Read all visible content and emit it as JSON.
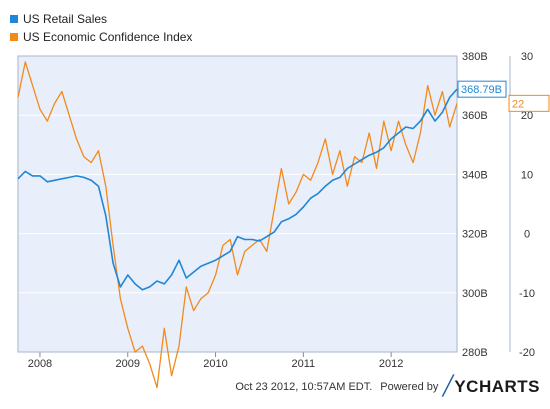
{
  "legend": [
    {
      "name": "US Retail Sales",
      "color": "#1f87d6"
    },
    {
      "name": "US Economic Confidence Index",
      "color": "#f28a1a"
    }
  ],
  "footer": {
    "timestamp": "Oct 23 2012, 10:57AM EDT.",
    "powered_by": "Powered by",
    "brand": "YCHARTS"
  },
  "chart_data": {
    "type": "line",
    "x_ticks": [
      "2008",
      "2009",
      "2010",
      "2011",
      "2012"
    ],
    "left_axis": {
      "ticks": [
        "280B",
        "300B",
        "320B",
        "340B",
        "360B",
        "380B"
      ],
      "range": [
        280,
        380
      ]
    },
    "right_axis": {
      "ticks": [
        "-20",
        "-10",
        "0",
        "10",
        "20",
        "30"
      ],
      "range": [
        -20,
        30
      ]
    },
    "x_range": [
      "2007-10",
      "2012-10"
    ],
    "grid": true,
    "legend_position": "top-left",
    "end_labels": {
      "left": "368.79B",
      "right": "22"
    },
    "series": [
      {
        "name": "US Retail Sales",
        "axis": "left",
        "color": "#1f87d6",
        "points": [
          [
            "2007-10",
            338.5
          ],
          [
            "2007-11",
            341
          ],
          [
            "2007-12",
            339.5
          ],
          [
            "2008-01",
            339.5
          ],
          [
            "2008-02",
            337.5
          ],
          [
            "2008-03",
            338
          ],
          [
            "2008-04",
            338.5
          ],
          [
            "2008-05",
            339
          ],
          [
            "2008-06",
            339.5
          ],
          [
            "2008-07",
            339
          ],
          [
            "2008-08",
            338
          ],
          [
            "2008-09",
            336
          ],
          [
            "2008-10",
            326
          ],
          [
            "2008-11",
            310
          ],
          [
            "2008-12",
            302
          ],
          [
            "2009-01",
            306
          ],
          [
            "2009-02",
            303
          ],
          [
            "2009-03",
            301
          ],
          [
            "2009-04",
            302
          ],
          [
            "2009-05",
            304
          ],
          [
            "2009-06",
            303
          ],
          [
            "2009-07",
            306
          ],
          [
            "2009-08",
            311
          ],
          [
            "2009-09",
            305
          ],
          [
            "2009-10",
            307
          ],
          [
            "2009-11",
            309
          ],
          [
            "2009-12",
            310
          ],
          [
            "2010-01",
            311
          ],
          [
            "2010-02",
            312.5
          ],
          [
            "2010-03",
            314
          ],
          [
            "2010-04",
            319
          ],
          [
            "2010-05",
            318
          ],
          [
            "2010-06",
            318
          ],
          [
            "2010-07",
            317.5
          ],
          [
            "2010-08",
            319
          ],
          [
            "2010-09",
            320.5
          ],
          [
            "2010-10",
            324
          ],
          [
            "2010-11",
            325
          ],
          [
            "2010-12",
            326.5
          ],
          [
            "2011-01",
            329
          ],
          [
            "2011-02",
            332
          ],
          [
            "2011-03",
            333.5
          ],
          [
            "2011-04",
            336
          ],
          [
            "2011-05",
            338
          ],
          [
            "2011-06",
            339
          ],
          [
            "2011-07",
            342
          ],
          [
            "2011-08",
            343.5
          ],
          [
            "2011-09",
            345
          ],
          [
            "2011-10",
            346.5
          ],
          [
            "2011-11",
            347.5
          ],
          [
            "2011-12",
            349
          ],
          [
            "2012-01",
            352
          ],
          [
            "2012-02",
            354
          ],
          [
            "2012-03",
            356
          ],
          [
            "2012-04",
            355.5
          ],
          [
            "2012-05",
            358
          ],
          [
            "2012-06",
            362
          ],
          [
            "2012-07",
            358
          ],
          [
            "2012-08",
            361
          ],
          [
            "2012-09",
            366
          ],
          [
            "2012-10",
            368.79
          ]
        ]
      },
      {
        "name": "US Economic Confidence Index",
        "axis": "right",
        "color": "#f28a1a",
        "points": [
          [
            "2007-10",
            23
          ],
          [
            "2007-11",
            29
          ],
          [
            "2007-12",
            25
          ],
          [
            "2008-01",
            21
          ],
          [
            "2008-02",
            19
          ],
          [
            "2008-03",
            22
          ],
          [
            "2008-04",
            24
          ],
          [
            "2008-05",
            20
          ],
          [
            "2008-06",
            16
          ],
          [
            "2008-07",
            13
          ],
          [
            "2008-08",
            12
          ],
          [
            "2008-09",
            14
          ],
          [
            "2008-10",
            8
          ],
          [
            "2008-11",
            -2
          ],
          [
            "2008-12",
            -11
          ],
          [
            "2009-01",
            -16
          ],
          [
            "2009-02",
            -20
          ],
          [
            "2009-03",
            -19
          ],
          [
            "2009-04",
            -22
          ],
          [
            "2009-05",
            -26
          ],
          [
            "2009-06",
            -16
          ],
          [
            "2009-07",
            -24
          ],
          [
            "2009-08",
            -19
          ],
          [
            "2009-09",
            -9
          ],
          [
            "2009-10",
            -13
          ],
          [
            "2009-11",
            -11
          ],
          [
            "2009-12",
            -10
          ],
          [
            "2010-01",
            -7
          ],
          [
            "2010-02",
            -2
          ],
          [
            "2010-03",
            -1
          ],
          [
            "2010-04",
            -7
          ],
          [
            "2010-05",
            -3
          ],
          [
            "2010-06",
            -2
          ],
          [
            "2010-07",
            -1
          ],
          [
            "2010-08",
            -3
          ],
          [
            "2010-09",
            4
          ],
          [
            "2010-10",
            11
          ],
          [
            "2010-11",
            5
          ],
          [
            "2010-12",
            7
          ],
          [
            "2011-01",
            10
          ],
          [
            "2011-02",
            9
          ],
          [
            "2011-03",
            12
          ],
          [
            "2011-04",
            16
          ],
          [
            "2011-05",
            10
          ],
          [
            "2011-06",
            14
          ],
          [
            "2011-07",
            8
          ],
          [
            "2011-08",
            13
          ],
          [
            "2011-09",
            12
          ],
          [
            "2011-10",
            17
          ],
          [
            "2011-11",
            11
          ],
          [
            "2011-12",
            19
          ],
          [
            "2012-01",
            14
          ],
          [
            "2012-02",
            19
          ],
          [
            "2012-03",
            15
          ],
          [
            "2012-04",
            12
          ],
          [
            "2012-05",
            17
          ],
          [
            "2012-06",
            25
          ],
          [
            "2012-07",
            20
          ],
          [
            "2012-08",
            24
          ],
          [
            "2012-09",
            18
          ],
          [
            "2012-10",
            22
          ]
        ]
      }
    ]
  }
}
